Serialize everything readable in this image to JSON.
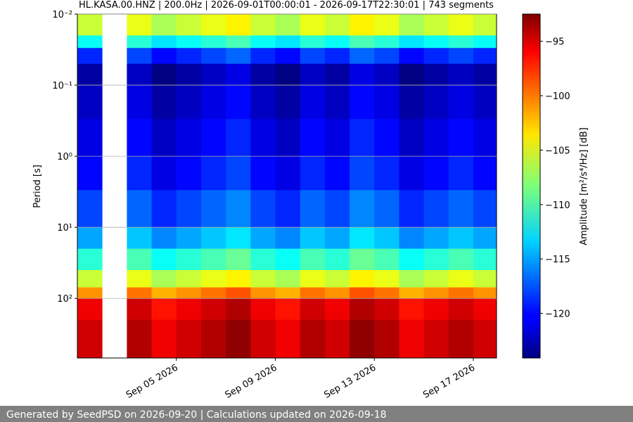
{
  "chart_data": {
    "type": "heatmap",
    "title": "HL.KASA.00.HNZ | 200.0Hz | 2026-09-01T00:00:01 - 2026-09-17T22:30:01 | 743 segments",
    "ylabel": "Period [s]",
    "colorbar_label": "Amplitude [m²/s⁴/Hz] [dB]",
    "colormap": "jet",
    "log_y": true,
    "y_inverted": true,
    "grid": true,
    "x": [
      "2026-09-01T00:00:00Z",
      "2026-09-02T00:00:00Z",
      "2026-09-03T00:00:00Z",
      "2026-09-04T00:00:00Z",
      "2026-09-05T00:00:00Z",
      "2026-09-06T00:00:00Z",
      "2026-09-07T00:00:00Z",
      "2026-09-08T00:00:00Z",
      "2026-09-09T00:00:00Z",
      "2026-09-10T00:00:00Z",
      "2026-09-11T00:00:00Z",
      "2026-09-12T00:00:00Z",
      "2026-09-13T00:00:00Z",
      "2026-09-14T00:00:00Z",
      "2026-09-15T00:00:00Z",
      "2026-09-16T00:00:00Z",
      "2026-09-17T00:00:00Z",
      "2026-09-17T22:30:01Z"
    ],
    "y_bins": [
      0.01,
      0.02,
      0.03,
      0.05,
      0.1,
      0.3,
      1,
      3,
      10,
      20,
      40,
      70,
      100,
      200,
      690
    ],
    "values": [
      [
        -106,
        null,
        -105,
        -107,
        -106,
        -105,
        -104,
        -106,
        -107,
        -105,
        -106,
        -104,
        -105,
        -107,
        -106,
        -105,
        -106
      ],
      [
        -112,
        null,
        -111,
        -113,
        -112,
        -111,
        -110,
        -112,
        -113,
        -111,
        -112,
        -110,
        -111,
        -113,
        -112,
        -111,
        -112
      ],
      [
        -119,
        null,
        -118,
        -120,
        -119,
        -118,
        -117,
        -119,
        -120,
        -118,
        -119,
        -117,
        -118,
        -120,
        -119,
        -118,
        -119
      ],
      [
        -123,
        null,
        -122,
        -124,
        -123,
        -122,
        -121,
        -123,
        -124,
        -122,
        -123,
        -121,
        -122,
        -124,
        -123,
        -122,
        -123
      ],
      [
        -122,
        null,
        -121,
        -123,
        -122,
        -121,
        -120,
        -122,
        -123,
        -121,
        -122,
        -120,
        -121,
        -123,
        -122,
        -121,
        -122
      ],
      [
        -121,
        null,
        -120,
        -122,
        -121,
        -120,
        -119,
        -121,
        -122,
        -120,
        -121,
        -119,
        -120,
        -122,
        -121,
        -120,
        -121
      ],
      [
        -120,
        null,
        -119,
        -121,
        -120,
        -119,
        -118,
        -120,
        -121,
        -119,
        -120,
        -118,
        -119,
        -121,
        -120,
        -119,
        -120
      ],
      [
        -118,
        null,
        -117,
        -119,
        -118,
        -117,
        -116,
        -118,
        -119,
        -117,
        -118,
        -116,
        -117,
        -119,
        -118,
        -117,
        -118
      ],
      [
        -115,
        null,
        -114,
        -116,
        -115,
        -114,
        -113,
        -115,
        -116,
        -114,
        -115,
        -113,
        -114,
        -116,
        -115,
        -114,
        -115
      ],
      [
        -111,
        null,
        -110,
        -112,
        -111,
        -110,
        -109,
        -111,
        -112,
        -110,
        -111,
        -109,
        -110,
        -112,
        -111,
        -110,
        -111
      ],
      [
        -106,
        null,
        -105,
        -107,
        -106,
        -105,
        -104,
        -106,
        -107,
        -105,
        -106,
        -104,
        -105,
        -107,
        -106,
        -105,
        -106
      ],
      [
        -101,
        null,
        -100,
        -102,
        -101,
        -100,
        -99,
        -101,
        -102,
        -100,
        -101,
        -99,
        -100,
        -102,
        -101,
        -100,
        -101
      ],
      [
        -96,
        null,
        -95,
        -97,
        -96,
        -95,
        -94,
        -96,
        -97,
        -95,
        -96,
        -94,
        -95,
        -97,
        -96,
        -95,
        -96
      ],
      [
        -95,
        null,
        -94,
        -96,
        -95,
        -94,
        -93,
        -95,
        -96,
        -94,
        -95,
        -93,
        -94,
        -96,
        -95,
        -94,
        -95
      ]
    ],
    "xlim": [
      "2026-09-01T00:00:00Z",
      "2026-09-17T22:30:01Z"
    ],
    "xticks": [
      {
        "value": "2026-09-05T00:00:00Z",
        "label": "Sep 05 2026"
      },
      {
        "value": "2026-09-09T00:00:00Z",
        "label": "Sep 09 2026"
      },
      {
        "value": "2026-09-13T00:00:00Z",
        "label": "Sep 13 2026"
      },
      {
        "value": "2026-09-17T00:00:00Z",
        "label": "Sep 17 2026"
      }
    ],
    "ylim": [
      0.01,
      690
    ],
    "yticks": [
      {
        "value": 0.01,
        "label": "10⁻²"
      },
      {
        "value": 0.1,
        "label": "10⁻¹"
      },
      {
        "value": 1,
        "label": "10⁰"
      },
      {
        "value": 10,
        "label": "10¹"
      },
      {
        "value": 100,
        "label": "10²"
      }
    ],
    "clim": [
      -124.1,
      -92.5
    ],
    "cticks": [
      {
        "value": -95,
        "label": "−95"
      },
      {
        "value": -100,
        "label": "−100"
      },
      {
        "value": -105,
        "label": "−105"
      },
      {
        "value": -110,
        "label": "−110"
      },
      {
        "value": -115,
        "label": "−115"
      },
      {
        "value": -120,
        "label": "−120"
      }
    ]
  },
  "footer": "Generated by SeedPSD on 2026-09-20 | Calculations updated on 2026-09-18"
}
